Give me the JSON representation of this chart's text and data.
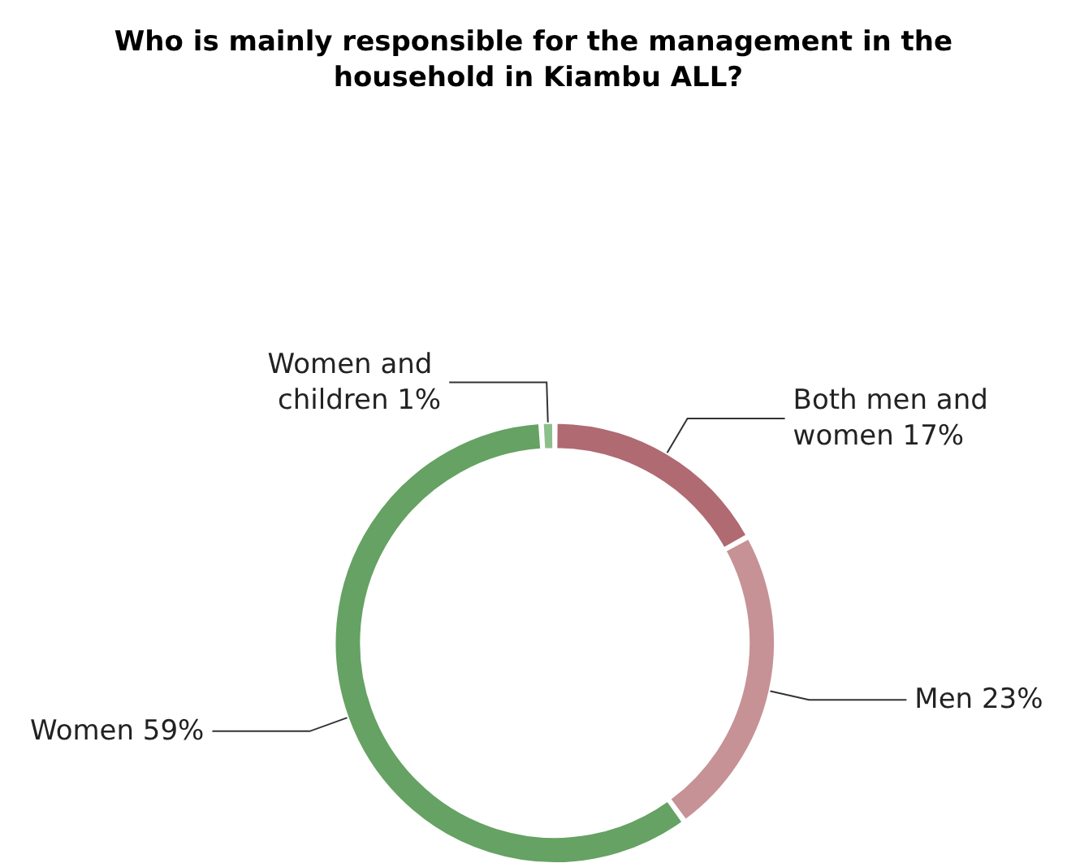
{
  "chart_data": {
    "type": "donut",
    "title": "Who is mainly responsible for the management in the household in Kiambu ALL?",
    "categories": [
      "Both men and women",
      "Men",
      "Women",
      "Women and children"
    ],
    "values": [
      17,
      23,
      59,
      1
    ],
    "colors": [
      "#b06a72",
      "#c69296",
      "#65a263",
      "#8cc08a"
    ],
    "value_labels": [
      "17%",
      "23%",
      "59%",
      "1%"
    ],
    "legend": false
  }
}
